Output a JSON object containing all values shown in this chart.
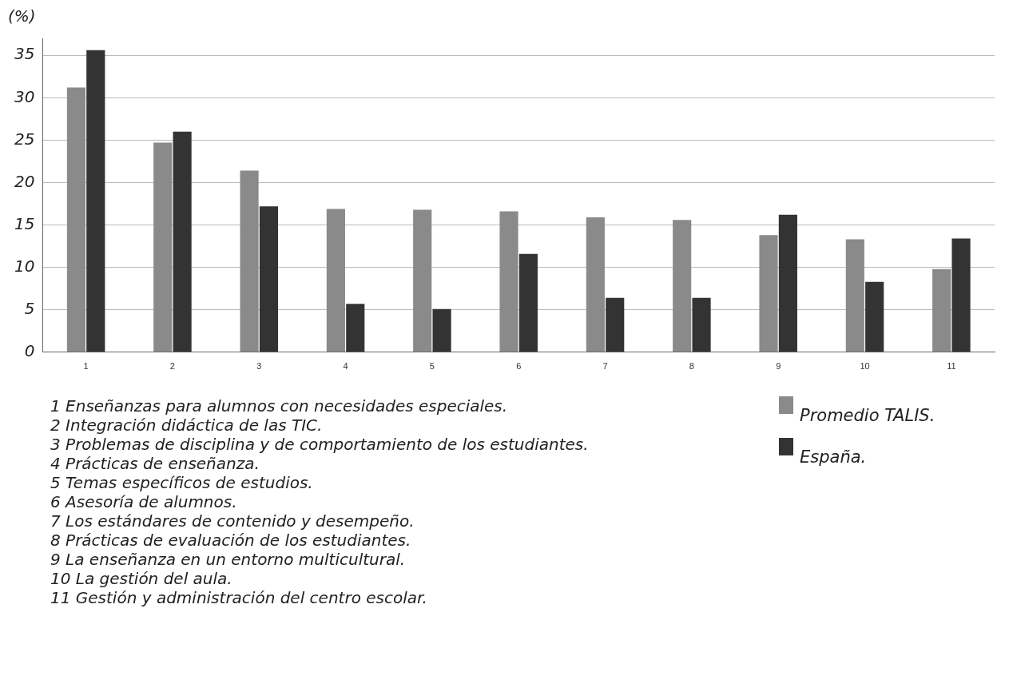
{
  "chart_data": {
    "type": "bar",
    "ylabel": "(%)",
    "categories": [
      "1",
      "2",
      "3",
      "4",
      "5",
      "6",
      "7",
      "8",
      "9",
      "10",
      "11"
    ],
    "series": [
      {
        "name": "Promedio TALIS.",
        "color": "#8a8a8a",
        "values": [
          31.2,
          24.7,
          21.4,
          16.9,
          16.8,
          16.6,
          15.9,
          15.6,
          13.8,
          13.3,
          9.8
        ]
      },
      {
        "name": "España.",
        "color": "#333333",
        "values": [
          35.6,
          26.0,
          17.2,
          5.7,
          5.1,
          11.6,
          6.4,
          6.4,
          16.2,
          8.3,
          13.4
        ]
      }
    ],
    "ylim": [
      0,
      37
    ],
    "yticks": [
      0,
      5,
      10,
      15,
      20,
      25,
      30,
      35
    ],
    "grid": "y",
    "legend": "bottom right",
    "annotations": [
      "1 Enseñanzas para alumnos con necesidades especiales.",
      "2 Integración didáctica de las TIC.",
      "3 Problemas de disciplina y de comportamiento de los estudiantes.",
      "4 Prácticas de enseñanza.",
      "5 Temas específicos de estudios.",
      "6 Asesoría de alumnos.",
      "7 Los estándares de contenido y desempeño.",
      "8 Prácticas de evaluación de los estudiantes.",
      "9 La enseñanza en un entorno multicultural.",
      "10 La gestión del aula.",
      "11 Gestión y administración del centro escolar."
    ]
  }
}
